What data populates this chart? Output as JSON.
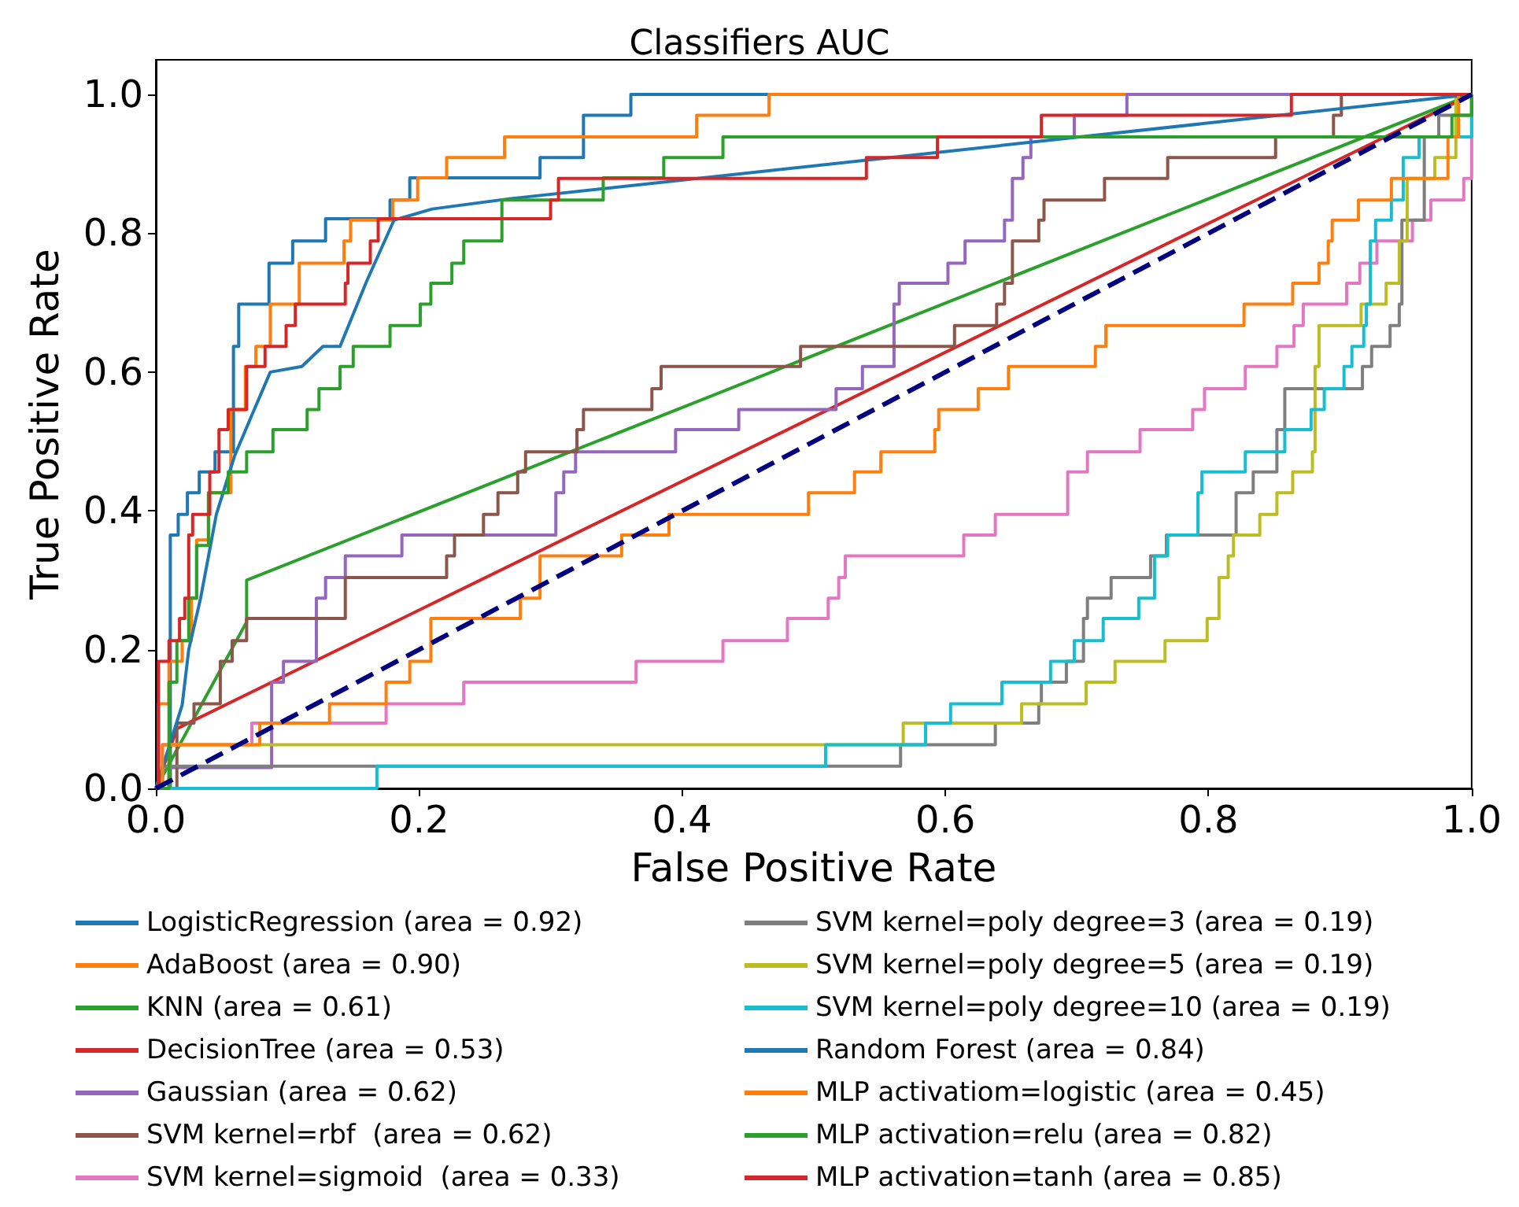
{
  "chart_data": {
    "type": "line",
    "title": "Classifiers AUC",
    "xlabel": "False Positive Rate",
    "ylabel": "True Positive Rate",
    "xlim": [
      0,
      1
    ],
    "ylim": [
      0,
      1.05
    ],
    "xticks": [
      {
        "value": 0,
        "label": "0.0"
      },
      {
        "value": 0.2,
        "label": "0.2"
      },
      {
        "value": 0.4,
        "label": "0.4"
      },
      {
        "value": 0.6,
        "label": "0.6"
      },
      {
        "value": 0.8,
        "label": "0.8"
      },
      {
        "value": 1,
        "label": "1.0"
      }
    ],
    "yticks": [
      {
        "value": 0,
        "label": "0.0"
      },
      {
        "value": 0.2,
        "label": "0.2"
      },
      {
        "value": 0.4,
        "label": "0.4"
      },
      {
        "value": 0.6,
        "label": "0.6"
      },
      {
        "value": 0.8,
        "label": "0.8"
      },
      {
        "value": 1,
        "label": "1.0"
      }
    ],
    "grid": false,
    "legend": "bottom",
    "marker": "none",
    "series": [
      {
        "name": "LogisticRegression (area = 0.92)",
        "type": "step",
        "color": "#1f77b4",
        "x": [
          0,
          0.011,
          0.017,
          0.024,
          0.033,
          0.045,
          0.059,
          0.063,
          0.086,
          0.104,
          0.129,
          0.178,
          0.193,
          0.292,
          0.325,
          0.361,
          1
        ],
        "values": [
          0,
          0.365,
          0.395,
          0.426,
          0.456,
          0.485,
          0.637,
          0.698,
          0.757,
          0.789,
          0.821,
          0.848,
          0.88,
          0.909,
          0.97,
          1,
          1
        ]
      },
      {
        "name": "AdaBoost (area = 0.90)",
        "type": "step",
        "color": "#ff7f0e",
        "x": [
          0,
          0.002,
          0.01,
          0.02,
          0.027,
          0.031,
          0.04,
          0.057,
          0.068,
          0.076,
          0.087,
          0.109,
          0.143,
          0.148,
          0.18,
          0.199,
          0.221,
          0.265,
          0.411,
          0.466,
          1
        ],
        "values": [
          0,
          0.122,
          0.183,
          0.213,
          0.274,
          0.358,
          0.426,
          0.546,
          0.608,
          0.637,
          0.698,
          0.757,
          0.789,
          0.819,
          0.848,
          0.88,
          0.909,
          0.939,
          0.97,
          1,
          1
        ]
      },
      {
        "name": "KNN (area = 0.61)",
        "color": "#2ca02c",
        "x": [
          0,
          0.069,
          0.069,
          1
        ],
        "values": [
          0,
          0.24,
          0.3,
          1
        ]
      },
      {
        "name": "DecisionTree (area = 0.53)",
        "color": "#d62728",
        "x": [
          0,
          0.016,
          1
        ],
        "values": [
          0,
          0.086,
          1
        ]
      },
      {
        "name": "Gaussian (area = 0.62)",
        "type": "step",
        "color": "#9467bd",
        "x": [
          0,
          0.01,
          0.088,
          0.097,
          0.122,
          0.129,
          0.144,
          0.187,
          0.304,
          0.31,
          0.319,
          0.395,
          0.443,
          0.517,
          0.537,
          0.561,
          0.565,
          0.602,
          0.615,
          0.645,
          0.651,
          0.659,
          0.665,
          0.698,
          0.738,
          1
        ],
        "values": [
          0,
          0.03,
          0.153,
          0.183,
          0.274,
          0.304,
          0.335,
          0.365,
          0.426,
          0.456,
          0.485,
          0.517,
          0.546,
          0.576,
          0.608,
          0.698,
          0.728,
          0.757,
          0.789,
          0.819,
          0.879,
          0.909,
          0.939,
          0.97,
          1,
          1
        ]
      },
      {
        "name": "SVM kernel=rbf  (area = 0.62)",
        "type": "step",
        "color": "#8c564b",
        "x": [
          0,
          0.016,
          0.029,
          0.049,
          0.058,
          0.069,
          0.144,
          0.221,
          0.227,
          0.249,
          0.26,
          0.275,
          0.281,
          0.32,
          0.325,
          0.377,
          0.384,
          0.49,
          0.607,
          0.639,
          0.645,
          0.651,
          0.671,
          0.675,
          0.721,
          0.769,
          0.851,
          0.895,
          0.901,
          1
        ],
        "values": [
          0,
          0.094,
          0.122,
          0.183,
          0.213,
          0.245,
          0.304,
          0.335,
          0.365,
          0.395,
          0.426,
          0.456,
          0.485,
          0.517,
          0.546,
          0.576,
          0.608,
          0.637,
          0.667,
          0.698,
          0.728,
          0.789,
          0.819,
          0.848,
          0.879,
          0.909,
          0.939,
          0.97,
          1,
          1
        ]
      },
      {
        "name": "SVM kernel=sigmoid  (area = 0.33)",
        "type": "step",
        "color": "#e377c2",
        "x": [
          0,
          0.005,
          0.073,
          0.175,
          0.234,
          0.365,
          0.431,
          0.48,
          0.511,
          0.519,
          0.524,
          0.614,
          0.638,
          0.693,
          0.708,
          0.748,
          0.788,
          0.797,
          0.828,
          0.852,
          0.865,
          0.872,
          0.905,
          0.915,
          0.928,
          0.955,
          0.969,
          0.994,
          1
        ],
        "values": [
          0,
          0.063,
          0.094,
          0.122,
          0.153,
          0.183,
          0.213,
          0.245,
          0.274,
          0.304,
          0.335,
          0.365,
          0.395,
          0.456,
          0.485,
          0.517,
          0.546,
          0.576,
          0.608,
          0.637,
          0.667,
          0.698,
          0.728,
          0.757,
          0.789,
          0.819,
          0.848,
          0.879,
          1
        ]
      },
      {
        "name": "SVM kernel=poly degree=3 (area = 0.19)",
        "type": "step",
        "color": "#7f7f7f",
        "x": [
          0,
          0.005,
          0.566,
          0.638,
          0.671,
          0.673,
          0.692,
          0.705,
          0.708,
          0.726,
          0.756,
          0.768,
          0.821,
          0.834,
          0.852,
          0.858,
          0.917,
          0.924,
          0.938,
          0.945,
          0.947,
          0.964,
          0.975,
          1
        ],
        "values": [
          0,
          0.032,
          0.063,
          0.094,
          0.122,
          0.153,
          0.183,
          0.245,
          0.274,
          0.304,
          0.335,
          0.365,
          0.426,
          0.456,
          0.517,
          0.576,
          0.608,
          0.637,
          0.667,
          0.698,
          0.819,
          0.939,
          0.97,
          1
        ]
      },
      {
        "name": "SVM kernel=poly degree=5 (area = 0.19)",
        "type": "step",
        "color": "#bcbd22",
        "x": [
          0,
          0.01,
          0.568,
          0.658,
          0.707,
          0.729,
          0.767,
          0.799,
          0.808,
          0.815,
          0.819,
          0.839,
          0.852,
          0.864,
          0.879,
          0.881,
          0.884,
          0.916,
          0.935,
          0.945,
          0.951,
          0.972,
          0.988,
          1
        ],
        "values": [
          0,
          0.063,
          0.094,
          0.122,
          0.153,
          0.183,
          0.213,
          0.245,
          0.304,
          0.335,
          0.365,
          0.395,
          0.426,
          0.456,
          0.485,
          0.608,
          0.667,
          0.698,
          0.728,
          0.789,
          0.879,
          0.909,
          1,
          1
        ]
      },
      {
        "name": "SVM kernel=poly degree=10 (area = 0.19)",
        "type": "step",
        "color": "#17becf",
        "x": [
          0,
          0.168,
          0.509,
          0.585,
          0.604,
          0.643,
          0.68,
          0.698,
          0.72,
          0.747,
          0.759,
          0.769,
          0.792,
          0.795,
          0.828,
          0.858,
          0.878,
          0.888,
          0.903,
          0.909,
          0.918,
          0.92,
          0.923,
          0.927,
          0.939,
          0.948,
          0.96,
          1
        ],
        "values": [
          0,
          0.032,
          0.063,
          0.094,
          0.122,
          0.153,
          0.183,
          0.213,
          0.245,
          0.274,
          0.335,
          0.365,
          0.426,
          0.456,
          0.485,
          0.517,
          0.546,
          0.576,
          0.608,
          0.637,
          0.667,
          0.698,
          0.789,
          0.819,
          0.848,
          0.909,
          0.939,
          1
        ]
      },
      {
        "name": "Random Forest (area = 0.84)",
        "color": "#1f77b4",
        "x": [
          0,
          0.01,
          0.02,
          0.025,
          0.034,
          0.046,
          0.06,
          0.073,
          0.087,
          0.111,
          0.127,
          0.14,
          0.16,
          0.181,
          0.21,
          0.27,
          1
        ],
        "values": [
          0,
          0.06,
          0.12,
          0.2,
          0.274,
          0.395,
          0.48,
          0.538,
          0.6,
          0.608,
          0.637,
          0.637,
          0.73,
          0.819,
          0.835,
          0.85,
          1
        ]
      },
      {
        "name": "MLP activatiom=logistic (area = 0.45)",
        "type": "step",
        "color": "#ff7f0e",
        "x": [
          0,
          0.005,
          0.079,
          0.132,
          0.175,
          0.193,
          0.209,
          0.277,
          0.292,
          0.354,
          0.39,
          0.496,
          0.531,
          0.551,
          0.592,
          0.595,
          0.625,
          0.648,
          0.714,
          0.722,
          0.827,
          0.864,
          0.884,
          0.891,
          0.894,
          0.914,
          0.939,
          0.982,
          0.99,
          1
        ],
        "values": [
          0,
          0.063,
          0.094,
          0.122,
          0.153,
          0.183,
          0.245,
          0.274,
          0.335,
          0.365,
          0.395,
          0.426,
          0.456,
          0.485,
          0.517,
          0.546,
          0.576,
          0.608,
          0.637,
          0.667,
          0.698,
          0.728,
          0.757,
          0.789,
          0.819,
          0.848,
          0.879,
          0.939,
          1,
          1
        ]
      },
      {
        "name": "MLP activation=relu (area = 0.82)",
        "type": "step",
        "color": "#2ca02c",
        "x": [
          0,
          0.01,
          0.016,
          0.025,
          0.031,
          0.04,
          0.055,
          0.069,
          0.089,
          0.115,
          0.124,
          0.14,
          0.15,
          0.178,
          0.201,
          0.209,
          0.225,
          0.234,
          0.263,
          0.34,
          0.386,
          0.431,
          0.985,
          1
        ],
        "values": [
          0,
          0.153,
          0.213,
          0.274,
          0.35,
          0.426,
          0.456,
          0.485,
          0.517,
          0.546,
          0.576,
          0.608,
          0.637,
          0.667,
          0.698,
          0.728,
          0.757,
          0.789,
          0.848,
          0.88,
          0.909,
          0.939,
          0.97,
          1
        ]
      },
      {
        "name": "MLP activation=tanh (area = 0.85)",
        "type": "step",
        "color": "#d62728",
        "x": [
          0,
          0.002,
          0.01,
          0.018,
          0.022,
          0.025,
          0.028,
          0.041,
          0.048,
          0.055,
          0.069,
          0.083,
          0.099,
          0.106,
          0.144,
          0.146,
          0.163,
          0.169,
          0.3,
          0.306,
          0.54,
          0.594,
          0.673,
          0.863,
          1
        ],
        "values": [
          0,
          0.183,
          0.213,
          0.245,
          0.274,
          0.365,
          0.395,
          0.456,
          0.517,
          0.546,
          0.608,
          0.637,
          0.667,
          0.698,
          0.728,
          0.757,
          0.789,
          0.821,
          0.848,
          0.879,
          0.909,
          0.939,
          0.97,
          1,
          1
        ]
      },
      {
        "color": "#000080",
        "line_style": "dashed",
        "x": [
          0,
          1
        ],
        "values": [
          0,
          1
        ]
      }
    ]
  }
}
